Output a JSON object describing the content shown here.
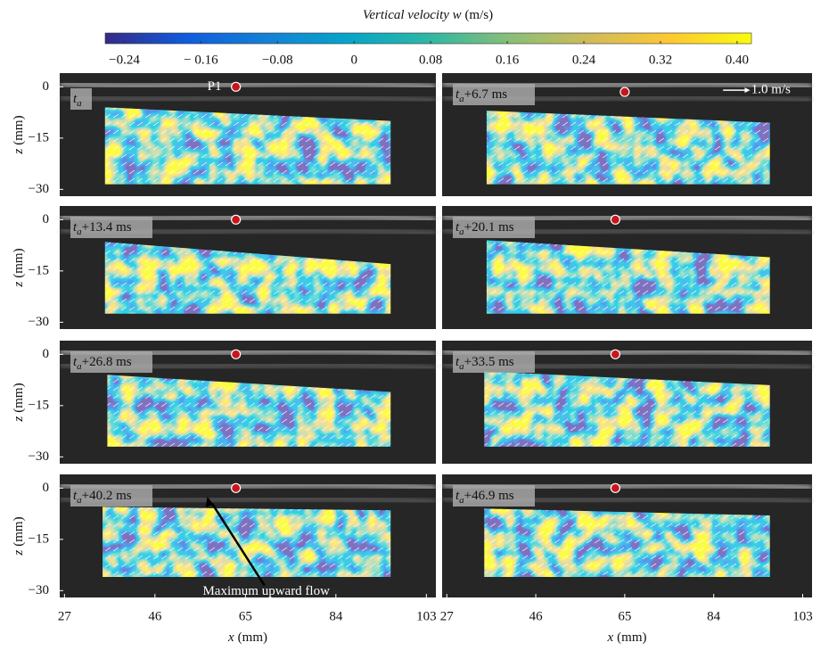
{
  "chart_data": {
    "type": "piv-grid",
    "colorbar": {
      "label": "Vertical velocity w",
      "unit": "(m/s)",
      "lim": [
        -0.26,
        0.415
      ],
      "ticks": [
        {
          "value": -0.24,
          "label": "−0.24"
        },
        {
          "value": -0.16,
          "label": "− 0.16"
        },
        {
          "value": -0.08,
          "label": "−0.08"
        },
        0,
        0.08,
        0.16,
        0.24,
        0.32,
        {
          "value": 0.4,
          "label": "0.40"
        }
      ],
      "colors": [
        "#352a87",
        "#0f5cdd",
        "#1481d6",
        "#06a4ca",
        "#2eb7a4",
        "#87bf77",
        "#d1bb59",
        "#fec832",
        "#f9fb0e"
      ]
    },
    "xlim": [
      26,
      105
    ],
    "xticks": [
      27,
      46,
      65,
      84,
      103
    ],
    "ylim": [
      -32,
      4
    ],
    "yticks": [
      0,
      {
        "value": -15,
        "label": "−15"
      },
      {
        "value": -30,
        "label": "−30"
      }
    ],
    "xlabel": {
      "symbol": "x",
      "unit": "(mm)"
    },
    "ylabel": {
      "symbol": "z",
      "unit": "(mm)"
    },
    "panels": [
      {
        "label": {
          "base": "t",
          "sub": "a"
        }
      },
      {
        "label": {
          "base": "t",
          "sub": "a",
          "suffix": "+6.7 ms"
        }
      },
      {
        "label": {
          "base": "t",
          "sub": "a",
          "suffix": "+13.4 ms"
        }
      },
      {
        "label": {
          "base": "t",
          "sub": "a",
          "suffix": "+20.1 ms"
        }
      },
      {
        "label": {
          "base": "t",
          "sub": "a",
          "suffix": "+26.8 ms"
        }
      },
      {
        "label": {
          "base": "t",
          "sub": "a",
          "suffix": "+33.5 ms"
        }
      },
      {
        "label": {
          "base": "t",
          "sub": "a",
          "suffix": "+40.2 ms"
        }
      },
      {
        "label": {
          "base": "t",
          "sub": "a",
          "suffix": "+46.9 ms"
        }
      }
    ],
    "point_label": "P1",
    "scale_label": "1.0 m/s",
    "callout": "Maximum upward flow"
  }
}
